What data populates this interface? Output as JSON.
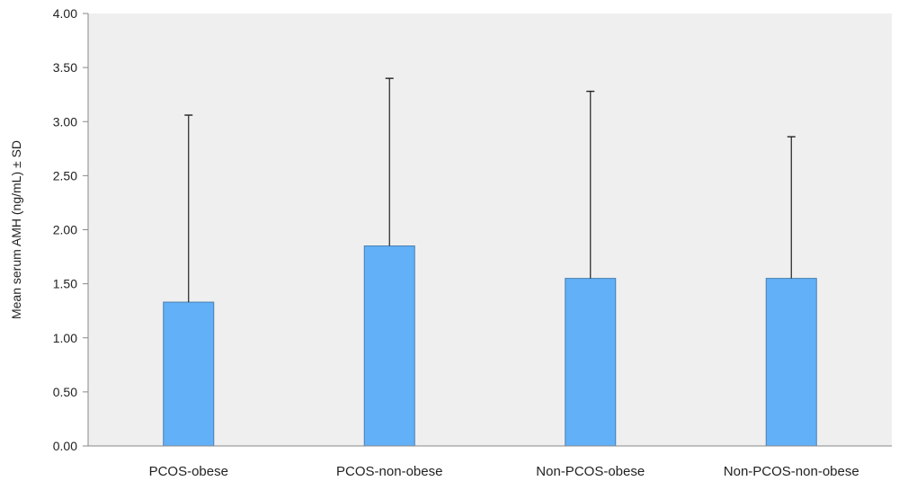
{
  "chart_data": {
    "type": "bar",
    "title": "",
    "xlabel": "",
    "ylabel": "Mean serum AMH (ng/mL) ± SD",
    "categories": [
      "PCOS-obese",
      "PCOS-non-obese",
      "Non-PCOS-obese",
      "Non-PCOS-non-obese"
    ],
    "values": [
      1.33,
      1.85,
      1.55,
      1.55
    ],
    "error_upper": [
      3.06,
      3.4,
      3.28,
      2.86
    ],
    "ylim": [
      0,
      4
    ],
    "yticks": [
      "0.00",
      "0.50",
      "1.00",
      "1.50",
      "2.00",
      "2.50",
      "3.00",
      "3.50",
      "4.00"
    ],
    "grid": false,
    "legend": "none",
    "colors": {
      "bar_fill": "#62b0f7",
      "bar_stroke": "#4a7fb0",
      "plot_background": "#efefef",
      "axis": "#888888",
      "error_bar": "#222222"
    }
  }
}
